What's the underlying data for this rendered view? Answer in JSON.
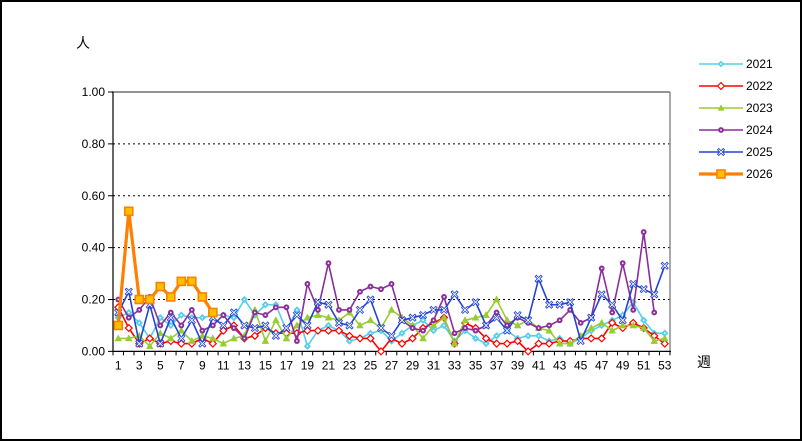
{
  "chart_data": {
    "type": "line",
    "title": "",
    "y_unit_label": "人",
    "x_unit_label": "週",
    "ylim": [
      0,
      1
    ],
    "y_tick_step": 0.2,
    "y_tick_labels": [
      "0.00",
      "0.20",
      "0.40",
      "0.60",
      "0.80",
      "1.00"
    ],
    "x_weeks_total": 53,
    "x_tick_labels": [
      "1",
      "3",
      "5",
      "7",
      "9",
      "11",
      "13",
      "15",
      "17",
      "19",
      "21",
      "23",
      "25",
      "27",
      "29",
      "31",
      "33",
      "35",
      "37",
      "39",
      "41",
      "43",
      "45",
      "47",
      "49",
      "51",
      "53"
    ],
    "grid": "dashed-horizontal",
    "legend_position": "right",
    "series": [
      {
        "name": "2021",
        "color": "#55CFEA",
        "marker": "diamond",
        "line_width": 1.6,
        "values": [
          0.13,
          0.15,
          0.11,
          0.05,
          0.13,
          0.1,
          0.14,
          0.13,
          0.13,
          0.14,
          0.14,
          0.13,
          0.2,
          0.14,
          0.18,
          0.18,
          0.08,
          0.16,
          0.02,
          0.08,
          0.1,
          0.08,
          0.04,
          0.05,
          0.07,
          0.08,
          0.04,
          0.07,
          0.1,
          0.12,
          0.08,
          0.1,
          0.04,
          0.08,
          0.05,
          0.03,
          0.06,
          0.08,
          0.05,
          0.06,
          0.06,
          0.04,
          0.05,
          0.03,
          0.05,
          0.08,
          0.1,
          0.12,
          0.14,
          0.19,
          0.12,
          0.07,
          0.07
        ]
      },
      {
        "name": "2022",
        "color": "#FF0000",
        "marker": "open-diamond",
        "line_width": 1.6,
        "values": [
          0.17,
          0.09,
          0.03,
          0.05,
          0.03,
          0.04,
          0.03,
          0.03,
          0.05,
          0.03,
          0.08,
          0.1,
          0.05,
          0.06,
          0.09,
          0.07,
          0.07,
          0.07,
          0.08,
          0.08,
          0.08,
          0.08,
          0.06,
          0.05,
          0.05,
          0.0,
          0.05,
          0.03,
          0.05,
          0.09,
          0.11,
          0.13,
          0.03,
          0.11,
          0.09,
          0.05,
          0.03,
          0.03,
          0.04,
          0.0,
          0.03,
          0.03,
          0.04,
          0.04,
          0.05,
          0.05,
          0.05,
          0.11,
          0.09,
          0.11,
          0.09,
          0.06,
          0.03
        ]
      },
      {
        "name": "2023",
        "color": "#99CC33",
        "marker": "triangle",
        "line_width": 1.6,
        "values": [
          0.05,
          0.05,
          0.06,
          0.02,
          0.07,
          0.05,
          0.08,
          0.04,
          0.06,
          0.05,
          0.03,
          0.05,
          0.06,
          0.16,
          0.04,
          0.12,
          0.05,
          0.1,
          0.13,
          0.14,
          0.13,
          0.12,
          0.15,
          0.1,
          0.12,
          0.09,
          0.16,
          0.13,
          0.1,
          0.05,
          0.1,
          0.13,
          0.03,
          0.12,
          0.13,
          0.14,
          0.2,
          0.12,
          0.1,
          0.12,
          0.09,
          0.08,
          0.03,
          0.03,
          0.06,
          0.09,
          0.11,
          0.08,
          0.1,
          0.1,
          0.09,
          0.04,
          0.05
        ]
      },
      {
        "name": "2024",
        "color": "#8B2E9B",
        "marker": "circle",
        "line_width": 1.6,
        "values": [
          0.2,
          0.13,
          0.16,
          0.21,
          0.1,
          0.15,
          0.1,
          0.16,
          0.08,
          0.1,
          0.14,
          0.09,
          0.05,
          0.15,
          0.14,
          0.17,
          0.17,
          0.04,
          0.26,
          0.16,
          0.34,
          0.16,
          0.16,
          0.23,
          0.25,
          0.24,
          0.26,
          0.12,
          0.09,
          0.08,
          0.12,
          0.21,
          0.07,
          0.09,
          0.08,
          0.1,
          0.15,
          0.1,
          0.13,
          0.11,
          0.09,
          0.1,
          0.12,
          0.16,
          0.11,
          0.13,
          0.32,
          0.15,
          0.34,
          0.16,
          0.46,
          0.15,
          null
        ]
      },
      {
        "name": "2025",
        "color": "#2244D4",
        "marker": "x",
        "line_width": 1.6,
        "values": [
          0.15,
          0.23,
          0.03,
          0.18,
          0.03,
          0.13,
          0.05,
          0.12,
          0.03,
          0.13,
          0.1,
          0.15,
          0.1,
          0.09,
          0.1,
          0.06,
          0.09,
          0.14,
          0.1,
          0.19,
          0.18,
          0.11,
          0.1,
          0.16,
          0.2,
          0.09,
          0.06,
          0.12,
          0.13,
          0.14,
          0.16,
          0.16,
          0.22,
          0.16,
          0.19,
          0.1,
          0.13,
          0.08,
          0.14,
          0.12,
          0.28,
          0.18,
          0.18,
          0.19,
          0.04,
          0.13,
          0.22,
          0.18,
          0.12,
          0.26,
          0.24,
          0.22,
          0.33
        ]
      },
      {
        "name": "2026",
        "color": "#FF8000",
        "marker": "square",
        "marker_fill": "#FFC000",
        "line_width": 3.2,
        "values": [
          0.1,
          0.54,
          0.2,
          0.2,
          0.25,
          0.21,
          0.27,
          0.27,
          0.21,
          0.15
        ]
      }
    ]
  },
  "legend": {
    "items": [
      "2021",
      "2022",
      "2023",
      "2024",
      "2025",
      "2026"
    ]
  },
  "frame": {
    "plot_border_color": "#848484",
    "axis_color": "#000000",
    "background": "#FFFFFF"
  }
}
